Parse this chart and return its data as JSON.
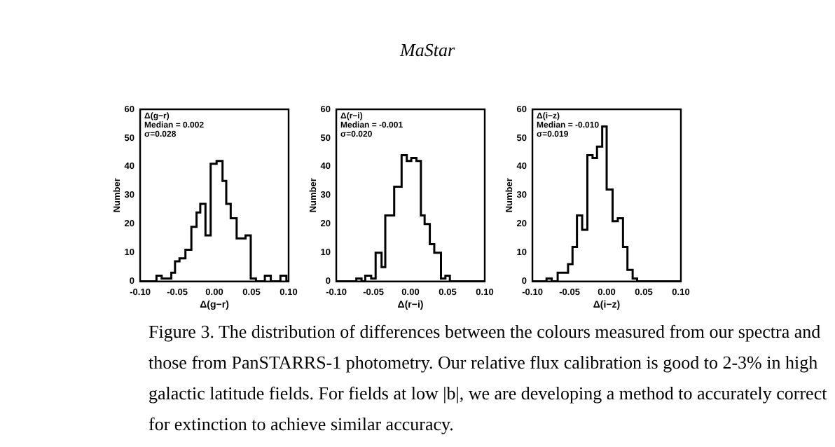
{
  "chart_data": [
    {
      "type": "other",
      "title": "MaStar"
    },
    {
      "type": "histogram",
      "xlabel": "Δ(g−r)",
      "ylabel": "Number",
      "annotations": [
        "Δ(g−r)",
        "Median = 0.002",
        "σ=0.028"
      ],
      "bins": [
        -0.1,
        -0.078,
        -0.071,
        -0.058,
        -0.053,
        -0.047,
        -0.039,
        -0.031,
        -0.024,
        -0.019,
        -0.012,
        -0.005,
        0.003,
        0.011,
        0.016,
        0.022,
        0.03,
        0.042,
        0.049,
        0.056,
        0.068,
        0.076,
        0.089,
        0.097,
        0.1
      ],
      "values": [
        0,
        2,
        1,
        3,
        7,
        8,
        11,
        19,
        24,
        27,
        16,
        41,
        42,
        35,
        27,
        22,
        15,
        16,
        1,
        0,
        2,
        0,
        2,
        0
      ],
      "color": "#000000",
      "xlim": [
        -0.1,
        0.1
      ],
      "ylim": [
        0,
        60
      ],
      "xticks": [
        {
          "value": -0.1,
          "label": "-0.10"
        },
        {
          "value": -0.05,
          "label": "-0.05"
        },
        {
          "value": 0,
          "label": "0.00"
        },
        {
          "value": 0.05,
          "label": "0.05"
        },
        {
          "value": 0.1,
          "label": "0.10"
        }
      ],
      "yticks": [
        0,
        10,
        20,
        30,
        40,
        50,
        60
      ]
    },
    {
      "type": "histogram",
      "xlabel": "Δ(r−i)",
      "ylabel": "Number",
      "annotations": [
        "Δ(r−i)",
        "Median = -0.001",
        "σ=0.020"
      ],
      "bins": [
        -0.1,
        -0.073,
        -0.066,
        -0.061,
        -0.053,
        -0.047,
        -0.039,
        -0.034,
        -0.022,
        -0.012,
        -0.005,
        0.001,
        0.008,
        0.014,
        0.019,
        0.026,
        0.032,
        0.041,
        0.047,
        0.053,
        0.1
      ],
      "values": [
        0,
        1,
        0,
        2,
        1,
        10,
        5,
        23,
        33,
        44,
        42,
        43,
        42,
        23,
        20,
        13,
        10,
        1,
        2,
        0
      ],
      "color": "#000000",
      "xlim": [
        -0.1,
        0.1
      ],
      "ylim": [
        0,
        60
      ],
      "xticks": [
        {
          "value": -0.1,
          "label": "-0.10"
        },
        {
          "value": -0.05,
          "label": "-0.05"
        },
        {
          "value": 0,
          "label": "0.00"
        },
        {
          "value": 0.05,
          "label": "0.05"
        },
        {
          "value": 0.1,
          "label": "0.10"
        }
      ],
      "yticks": [
        0,
        10,
        20,
        30,
        40,
        50,
        60
      ]
    },
    {
      "type": "histogram",
      "xlabel": "Δ(i−z)",
      "ylabel": "Number",
      "annotations": [
        "Δ(i−z)",
        "Median = -0.010",
        "σ=0.019"
      ],
      "bins": [
        -0.1,
        -0.081,
        -0.074,
        -0.066,
        -0.052,
        -0.046,
        -0.04,
        -0.033,
        -0.026,
        -0.019,
        -0.013,
        -0.006,
        0.0,
        0.008,
        0.015,
        0.022,
        0.028,
        0.035,
        0.041,
        0.1
      ],
      "values": [
        0,
        1,
        0,
        3,
        6,
        12,
        23,
        18,
        44,
        43,
        47,
        54,
        32,
        21,
        22,
        12,
        4,
        1,
        0
      ],
      "color": "#000000",
      "xlim": [
        -0.1,
        0.1
      ],
      "ylim": [
        0,
        60
      ],
      "xticks": [
        {
          "value": -0.1,
          "label": "-0.10"
        },
        {
          "value": -0.05,
          "label": "-0.05"
        },
        {
          "value": 0,
          "label": "0.00"
        },
        {
          "value": 0.05,
          "label": "0.05"
        },
        {
          "value": 0.1,
          "label": "0.10"
        }
      ],
      "yticks": [
        0,
        10,
        20,
        30,
        40,
        50,
        60
      ]
    },
    {
      "type": "other",
      "annotations": [
        "Figure 3. The distribution of differences between the colours measured from our spectra and those from PanSTARRS-1 photometry. Our relative flux calibration is good to 2-3% in high galactic latitude fields. For fields at low |b|, we are developing a method to accurately correct for extinction to achieve similar accuracy."
      ]
    }
  ]
}
